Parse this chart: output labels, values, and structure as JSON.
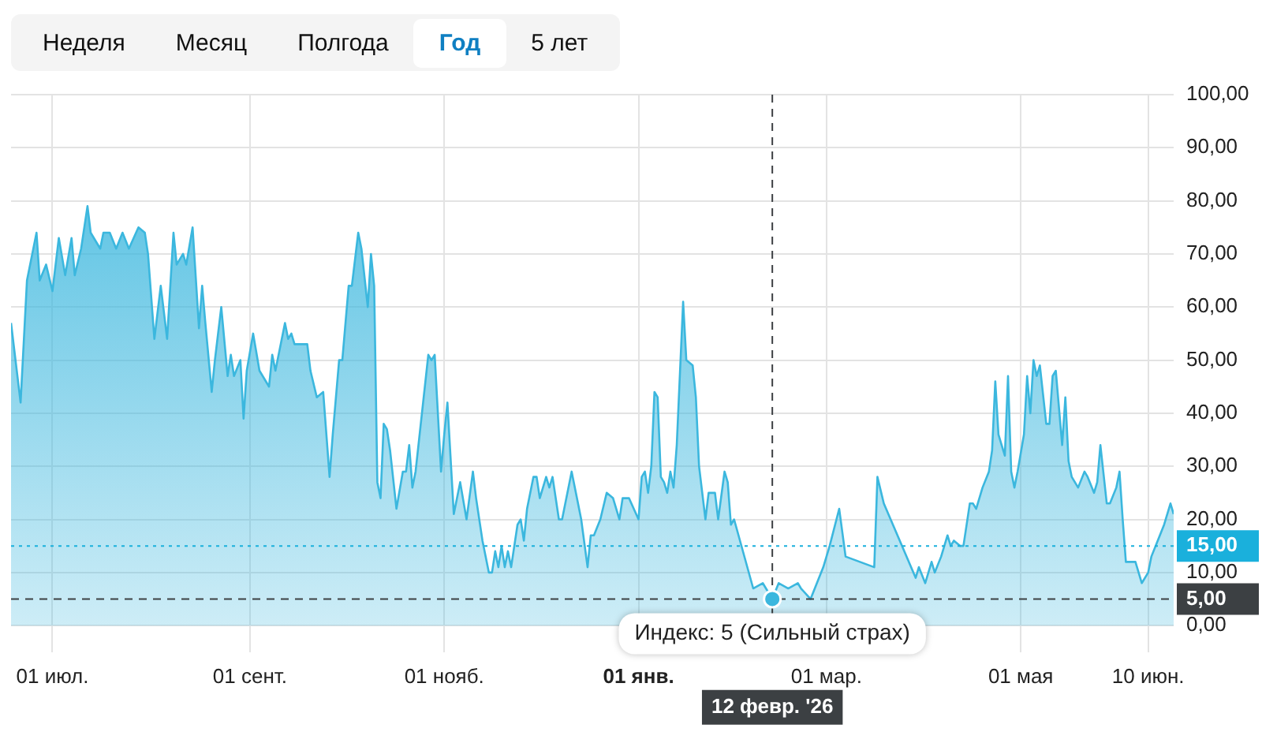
{
  "chart_data": {
    "type": "area",
    "x": [
      "2025-06-18",
      "2025-06-21",
      "2025-06-23",
      "2025-06-26",
      "2025-06-27",
      "2025-06-29",
      "2025-07-01",
      "2025-07-03",
      "2025-07-05",
      "2025-07-07",
      "2025-07-08",
      "2025-07-10",
      "2025-07-12",
      "2025-07-13",
      "2025-07-16",
      "2025-07-17",
      "2025-07-19",
      "2025-07-21",
      "2025-07-23",
      "2025-07-25",
      "2025-07-28",
      "2025-07-30",
      "2025-07-31",
      "2025-08-02",
      "2025-08-04",
      "2025-08-06",
      "2025-08-08",
      "2025-08-09",
      "2025-08-11",
      "2025-08-12",
      "2025-08-14",
      "2025-08-16",
      "2025-08-17",
      "2025-08-18",
      "2025-08-20",
      "2025-08-21",
      "2025-08-23",
      "2025-08-25",
      "2025-08-26",
      "2025-08-27",
      "2025-08-29",
      "2025-08-30",
      "2025-08-31",
      "2025-09-02",
      "2025-09-04",
      "2025-09-07",
      "2025-09-08",
      "2025-09-09",
      "2025-09-12",
      "2025-09-13",
      "2025-09-14",
      "2025-09-15",
      "2025-09-17",
      "2025-09-19",
      "2025-09-20",
      "2025-09-22",
      "2025-09-24",
      "2025-09-26",
      "2025-09-27",
      "2025-09-29",
      "2025-09-30",
      "2025-10-02",
      "2025-10-03",
      "2025-10-05",
      "2025-10-06",
      "2025-10-08",
      "2025-10-09",
      "2025-10-10",
      "2025-10-11",
      "2025-10-12",
      "2025-10-13",
      "2025-10-14",
      "2025-10-15",
      "2025-10-17",
      "2025-10-19",
      "2025-10-20",
      "2025-10-21",
      "2025-10-22",
      "2025-10-23",
      "2025-10-25",
      "2025-10-27",
      "2025-10-28",
      "2025-10-29",
      "2025-10-31",
      "2025-11-01",
      "2025-11-02",
      "2025-11-04",
      "2025-11-06",
      "2025-11-08",
      "2025-11-10",
      "2025-11-11",
      "2025-11-13",
      "2025-11-15",
      "2025-11-16",
      "2025-11-17",
      "2025-11-18",
      "2025-11-19",
      "2025-11-20",
      "2025-11-21",
      "2025-11-22",
      "2025-11-24",
      "2025-11-25",
      "2025-11-26",
      "2025-11-27",
      "2025-11-29",
      "2025-11-30",
      "2025-12-01",
      "2025-12-03",
      "2025-12-04",
      "2025-12-05",
      "2025-12-07",
      "2025-12-08",
      "2025-12-11",
      "2025-12-13",
      "2025-12-14",
      "2025-12-16",
      "2025-12-17",
      "2025-12-18",
      "2025-12-20",
      "2025-12-22",
      "2025-12-24",
      "2025-12-26",
      "2025-12-27",
      "2025-12-29",
      "2026-01-01",
      "2026-01-02",
      "2026-01-03",
      "2026-01-04",
      "2026-01-05",
      "2026-01-06",
      "2026-01-07",
      "2026-01-08",
      "2026-01-09",
      "2026-01-10",
      "2026-01-11",
      "2026-01-12",
      "2026-01-13",
      "2026-01-15",
      "2026-01-16",
      "2026-01-18",
      "2026-01-19",
      "2026-01-20",
      "2026-01-22",
      "2026-01-23",
      "2026-01-25",
      "2026-01-26",
      "2026-01-28",
      "2026-01-29",
      "2026-01-30",
      "2026-01-31",
      "2026-02-06",
      "2026-02-09",
      "2026-02-12",
      "2026-02-14",
      "2026-02-17",
      "2026-02-20",
      "2026-02-21",
      "2026-02-24",
      "2026-02-26",
      "2026-02-28",
      "2026-03-02",
      "2026-03-05",
      "2026-03-07",
      "2026-03-16",
      "2026-03-17",
      "2026-03-19",
      "2026-03-29",
      "2026-03-30",
      "2026-04-01",
      "2026-04-03",
      "2026-04-04",
      "2026-04-06",
      "2026-04-08",
      "2026-04-09",
      "2026-04-10",
      "2026-04-12",
      "2026-04-13",
      "2026-04-15",
      "2026-04-16",
      "2026-04-17",
      "2026-04-19",
      "2026-04-21",
      "2026-04-22",
      "2026-04-23",
      "2026-04-24",
      "2026-04-26",
      "2026-04-27",
      "2026-04-28",
      "2026-04-29",
      "2026-04-30",
      "2026-05-02",
      "2026-05-03",
      "2026-05-04",
      "2026-05-05",
      "2026-05-06",
      "2026-05-07",
      "2026-05-09",
      "2026-05-10",
      "2026-05-11",
      "2026-05-12",
      "2026-05-14",
      "2026-05-15",
      "2026-05-16",
      "2026-05-17",
      "2026-05-19",
      "2026-05-21",
      "2026-05-22",
      "2026-05-24",
      "2026-05-25",
      "2026-05-26",
      "2026-05-28",
      "2026-05-29",
      "2026-05-31",
      "2026-06-01",
      "2026-06-02",
      "2026-06-03",
      "2026-06-06",
      "2026-06-08",
      "2026-06-10",
      "2026-06-11",
      "2026-06-13",
      "2026-06-15",
      "2026-06-17",
      "2026-06-18"
    ],
    "series": [
      {
        "color": "#3bb7de",
        "values": [
          57,
          42,
          65,
          74,
          65,
          68,
          63,
          73,
          66,
          73,
          66,
          71,
          79,
          74,
          71,
          74,
          74,
          71,
          74,
          71,
          75,
          74,
          70,
          54,
          64,
          54,
          74,
          68,
          70,
          68,
          75,
          56,
          64,
          57,
          44,
          50,
          60,
          47,
          51,
          47,
          50,
          39,
          48,
          55,
          48,
          45,
          51,
          48,
          57,
          54,
          55,
          53,
          53,
          53,
          48,
          43,
          44,
          28,
          36,
          50,
          50,
          64,
          64,
          74,
          71,
          60,
          70,
          64,
          27,
          24,
          38,
          37,
          33,
          22,
          29,
          29,
          34,
          26,
          29,
          40,
          51,
          50,
          51,
          29,
          36,
          42,
          21,
          27,
          20,
          29,
          24,
          16,
          10,
          10,
          14,
          11,
          15,
          11,
          14,
          11,
          19,
          20,
          16,
          22,
          28,
          28,
          24,
          28,
          26,
          28,
          20,
          20,
          29,
          23,
          20,
          11,
          17,
          17,
          20,
          25,
          24,
          20,
          24,
          24,
          20,
          28,
          29,
          25,
          30,
          44,
          43,
          28,
          27,
          25,
          29,
          26,
          34,
          61,
          50,
          49,
          43,
          30,
          20,
          25,
          25,
          20,
          29,
          27,
          19,
          20,
          7,
          8,
          5,
          8,
          7,
          8,
          7,
          5,
          8,
          11,
          15,
          22,
          13,
          11,
          28,
          23,
          9,
          11,
          8,
          12,
          10,
          13,
          17,
          15,
          16,
          15,
          15,
          23,
          23,
          22,
          26,
          29,
          33,
          46,
          36,
          32,
          47,
          29,
          26,
          29,
          36,
          47,
          40,
          50,
          47,
          49,
          38,
          38,
          47,
          48,
          34,
          43,
          31,
          28,
          26,
          29,
          28,
          25,
          27,
          34,
          23,
          23,
          26,
          29,
          20,
          12,
          12,
          8,
          10,
          13,
          16,
          19,
          23,
          21
        ]
      }
    ],
    "xlim": [
      "2025-06-18",
      "2026-06-18"
    ],
    "xticks": [
      {
        "value": "2025-07-01",
        "label": "01 июл."
      },
      {
        "value": "2025-09-01",
        "label": "01 сент."
      },
      {
        "value": "2025-11-01",
        "label": "01 нояб."
      },
      {
        "value": "2026-01-01",
        "label": "01 янв."
      },
      {
        "value": "2026-03-01",
        "label": "01 мар."
      },
      {
        "value": "2026-05-01",
        "label": "01 мая"
      },
      {
        "value": "2026-06-10",
        "label": "10 июн."
      }
    ],
    "ylim": [
      -5,
      100
    ],
    "yticks": [
      {
        "value": 0,
        "label": "0,00"
      },
      {
        "value": 10,
        "label": "10,00"
      },
      {
        "value": 20,
        "label": "20,00"
      },
      {
        "value": 30,
        "label": "30,00"
      },
      {
        "value": 40,
        "label": "40,00"
      },
      {
        "value": 50,
        "label": "50,00"
      },
      {
        "value": 60,
        "label": "60,00"
      },
      {
        "value": 70,
        "label": "70,00"
      },
      {
        "value": 80,
        "label": "80,00"
      },
      {
        "value": 90,
        "label": "90,00"
      },
      {
        "value": 100,
        "label": "100,00"
      }
    ],
    "grid": true,
    "legend": false,
    "marker": "none",
    "ref_lines": [
      {
        "axis": "y",
        "value": 15,
        "label": "15,00",
        "color": "#1ab0dc",
        "line_style": "dotted"
      },
      {
        "axis": "y",
        "value": 5,
        "label": "5,00",
        "color": "#3c4043",
        "line_style": "dashed"
      },
      {
        "axis": "x",
        "value": "2026-02-12",
        "label": "12 февр. '26",
        "color": "#3c4043",
        "line_style": "dashed"
      }
    ],
    "annotations": [
      {
        "text": "Индекс: 5 (Сильный страх)",
        "x": "2026-02-12",
        "y": 5
      },
      "Неделя",
      "Месяц",
      "Полгода",
      "Год",
      "5 лет"
    ]
  }
}
